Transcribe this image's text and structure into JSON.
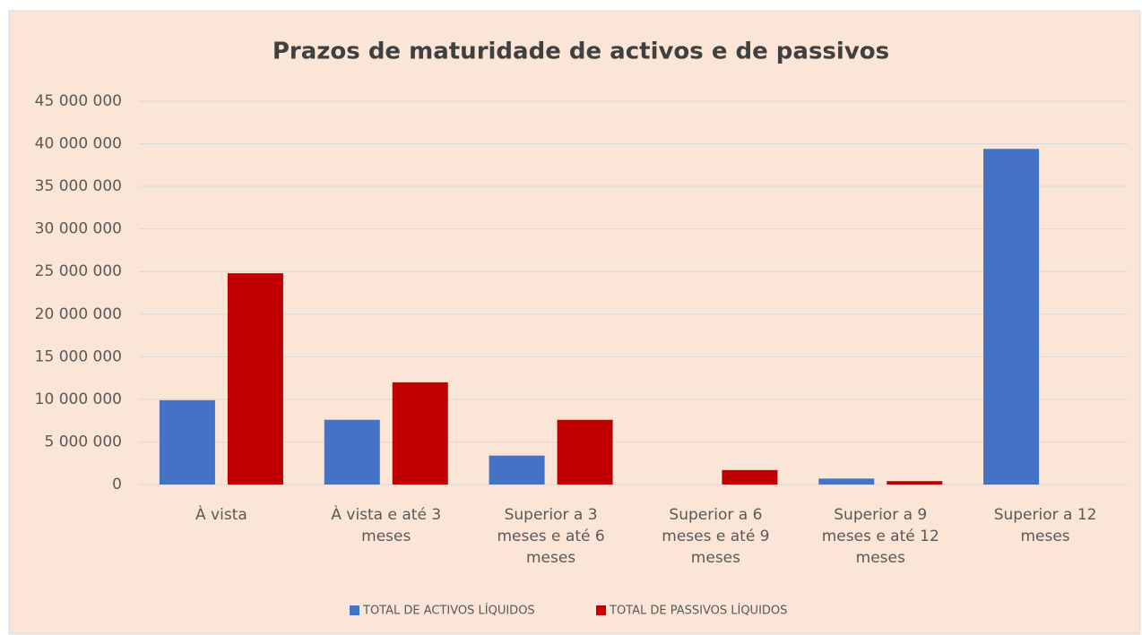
{
  "chart_data": {
    "type": "bar",
    "title": "Prazos de maturidade de activos e de passivos",
    "categories": [
      "À vista",
      "À vista e até 3 meses",
      "Superior a 3 meses e até 6 meses",
      "Superior a 6 meses e até 9 meses",
      "Superior a 9 meses e até 12 meses",
      "Superior a 12 meses"
    ],
    "series": [
      {
        "name": "TOTAL DE ACTIVOS LÍQUIDOS",
        "color": "#4472c4",
        "values": [
          9900000,
          7600000,
          3400000,
          0,
          700000,
          39400000
        ]
      },
      {
        "name": "TOTAL DE PASSIVOS LÍQUIDOS",
        "color": "#c00000",
        "values": [
          24800000,
          12000000,
          7600000,
          1700000,
          400000,
          0
        ]
      }
    ],
    "ylim": [
      0,
      45000000
    ],
    "yticks": [
      0,
      {
        "value": 5000000,
        "label": "5 000 000"
      },
      {
        "value": 10000000,
        "label": "10 000 000"
      },
      {
        "value": 15000000,
        "label": "15 000 000"
      },
      {
        "value": 20000000,
        "label": "20 000 000"
      },
      {
        "value": 25000000,
        "label": "25 000 000"
      },
      {
        "value": 30000000,
        "label": "30 000 000"
      },
      {
        "value": 35000000,
        "label": "35 000 000"
      },
      {
        "value": 40000000,
        "label": "40 000 000"
      },
      {
        "value": 45000000,
        "label": "45 000 000"
      }
    ],
    "grid": true,
    "legend": "bottom"
  }
}
